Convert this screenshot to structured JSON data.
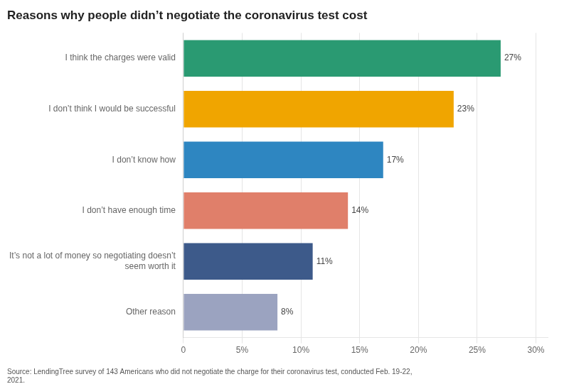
{
  "chart_data": {
    "type": "bar",
    "orientation": "horizontal",
    "title": "Reasons why people didn’t negotiate the coronavirus test cost",
    "categories": [
      "Other reason",
      "It’s not a lot of money so negotiating doesn’t\nseem worth it",
      "I don’t have enough time",
      "I don’t know how",
      "I don’t think I would be successful",
      "I think the charges were valid"
    ],
    "values": [
      8,
      11,
      14,
      17,
      23,
      27
    ],
    "value_labels": [
      "8%",
      "11%",
      "14%",
      "17%",
      "23%",
      "27%"
    ],
    "data_labels": true,
    "colors": [
      "#9ba3c0",
      "#3d5a8a",
      "#e07f6a",
      "#2e86c1",
      "#f0a500",
      "#2a9a72"
    ],
    "xlim": [
      0,
      31
    ],
    "xticks": [
      0,
      {
        "value": 5,
        "label": "5%"
      },
      {
        "value": 10,
        "label": "10%"
      },
      {
        "value": 15,
        "label": "15%"
      },
      {
        "value": 20,
        "label": "20%"
      },
      {
        "value": 25,
        "label": "25%"
      },
      {
        "value": 30,
        "label": "30%"
      }
    ],
    "grid": true,
    "source": "Source: LendingTree survey of 143 Americans who did not negotiate the charge for their coronavirus test, conducted Feb. 19-22,\n2021."
  }
}
